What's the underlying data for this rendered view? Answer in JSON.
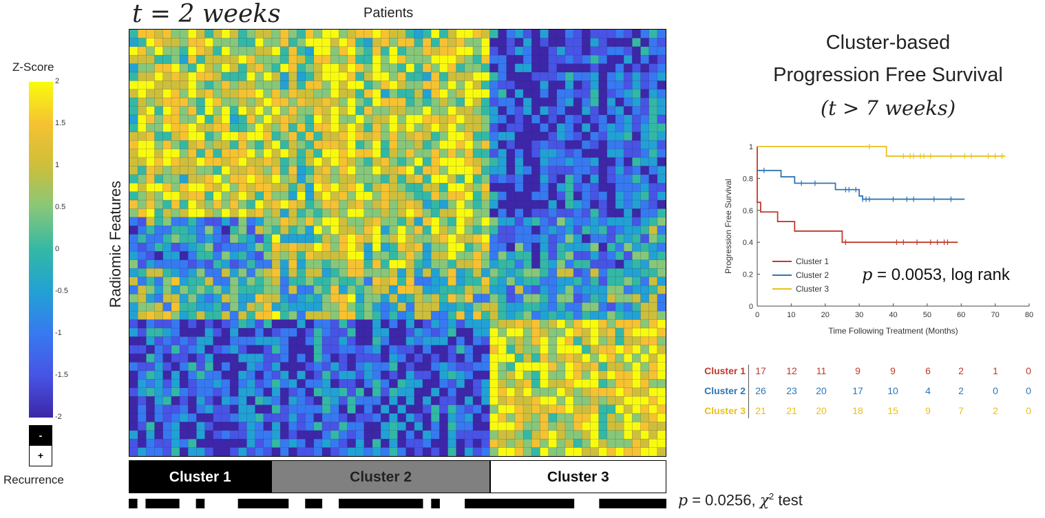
{
  "heatmap": {
    "title": "t = 2 weeks",
    "x_label": "Patients",
    "y_label": "Radiomic Features",
    "colorbar": {
      "title": "Z-Score",
      "ticks": [
        "2",
        "1.5",
        "1",
        "0.5",
        "0",
        "-0.5",
        "-1",
        "-1.5",
        "-2"
      ],
      "colors": [
        "#f9fb0e",
        "#f5c231",
        "#cdbf3b",
        "#86c77a",
        "#33b8a5",
        "#22a1d4",
        "#3779f0",
        "#4754e5",
        "#3d26a8"
      ]
    },
    "recurrence_legend": {
      "minus": "-",
      "plus": "+",
      "label": "Recurrence"
    },
    "clusters": [
      {
        "label": "Cluster 1",
        "fill": "#000000",
        "text_color": "#ffffff",
        "start_col": 0,
        "end_col": 16
      },
      {
        "label": "Cluster 2",
        "fill": "#808080",
        "text_color": "#222222",
        "start_col": 17,
        "end_col": 42
      },
      {
        "label": "Cluster 3",
        "fill": "#ffffff",
        "text_color": "#111111",
        "start_col": 43,
        "end_col": 63
      }
    ],
    "recurrence_pattern": "1011110010000111111001100111111111101000111111111111100011111111"
  },
  "chi_test": {
    "prefix": "p",
    "text": " = 0.0256, ",
    "stat": "χ",
    "sup": "2",
    "suffix": " test"
  },
  "km": {
    "title_line1": "Cluster-based",
    "title_line2": "Progression Free Survival",
    "title_line3": "(t > 7 weeks)",
    "logrank": {
      "prefix": "p",
      "text": " = 0.0053, log rank"
    },
    "chart_data": {
      "type": "line",
      "title": "Cluster-based Progression Free Survival (t > 7 weeks)",
      "xlabel": "Time Following Treatment (Months)",
      "ylabel": "Progression Free Survival",
      "xlim": [
        0,
        80
      ],
      "ylim": [
        0,
        1
      ],
      "x_ticks": [
        "0",
        "10",
        "20",
        "30",
        "40",
        "50",
        "60",
        "70",
        "80"
      ],
      "y_ticks": [
        "0",
        "0.2",
        "0.4",
        "0.6",
        "0.8",
        "1"
      ],
      "series": [
        {
          "name": "Cluster 1",
          "color": "#c0392b",
          "steps": [
            [
              0,
              1.0
            ],
            [
              0,
              0.65
            ],
            [
              1,
              0.59
            ],
            [
              6,
              0.53
            ],
            [
              11,
              0.47
            ],
            [
              25,
              0.4
            ],
            [
              59,
              0.4
            ]
          ],
          "censors": [
            26,
            41,
            43,
            47,
            51,
            53,
            55,
            56
          ]
        },
        {
          "name": "Cluster 2",
          "color": "#2e75b6",
          "steps": [
            [
              0,
              0.85
            ],
            [
              7,
              0.81
            ],
            [
              11,
              0.77
            ],
            [
              23,
              0.73
            ],
            [
              30,
              0.69
            ],
            [
              31,
              0.67
            ],
            [
              61,
              0.67
            ]
          ],
          "censors": [
            2,
            13,
            17,
            26,
            27,
            29,
            31,
            32,
            33,
            40,
            44,
            46,
            52,
            57
          ]
        },
        {
          "name": "Cluster 3",
          "color": "#e8c01a",
          "steps": [
            [
              0,
              1.0
            ],
            [
              38,
              1.0
            ],
            [
              38,
              0.94
            ],
            [
              73,
              0.94
            ]
          ],
          "censors": [
            33,
            43,
            45,
            46,
            48,
            49,
            51,
            57,
            61,
            63,
            68,
            70,
            72
          ]
        }
      ],
      "risk_table": {
        "rows": [
          {
            "name": "Cluster 1",
            "color": "#c0392b",
            "values": [
              "17",
              "12",
              "11",
              "9",
              "9",
              "6",
              "2",
              "1",
              "0"
            ]
          },
          {
            "name": "Cluster 2",
            "color": "#2e75b6",
            "values": [
              "26",
              "23",
              "20",
              "17",
              "10",
              "4",
              "2",
              "0",
              "0"
            ]
          },
          {
            "name": "Cluster 3",
            "color": "#e8c01a",
            "values": [
              "21",
              "21",
              "20",
              "18",
              "15",
              "9",
              "7",
              "2",
              "0"
            ]
          }
        ]
      }
    }
  }
}
